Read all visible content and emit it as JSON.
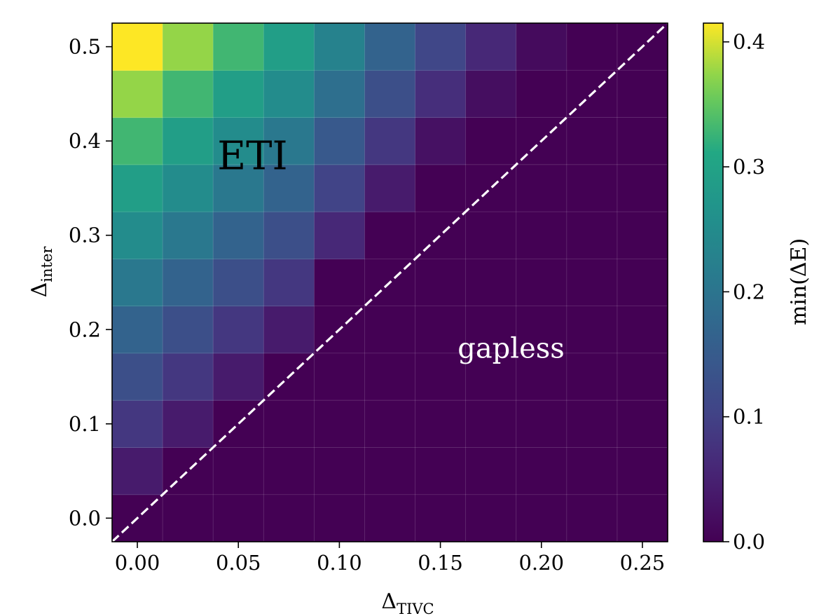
{
  "chart_data": {
    "type": "heatmap",
    "x": [
      0.0,
      0.025,
      0.05,
      0.075,
      0.1,
      0.125,
      0.15,
      0.175,
      0.2,
      0.225,
      0.25
    ],
    "y": [
      0.0,
      0.05,
      0.1,
      0.15,
      0.2,
      0.25,
      0.3,
      0.35,
      0.4,
      0.45,
      0.5
    ],
    "values": [
      [
        0.0,
        0.0,
        0.0,
        0.0,
        0.0,
        0.0,
        0.0,
        0.0,
        0.0,
        0.0,
        0.0
      ],
      [
        0.04,
        0.0,
        0.0,
        0.0,
        0.0,
        0.0,
        0.0,
        0.0,
        0.0,
        0.0,
        0.0
      ],
      [
        0.083,
        0.04,
        0.0,
        0.0,
        0.0,
        0.0,
        0.0,
        0.0,
        0.0,
        0.0,
        0.0
      ],
      [
        0.125,
        0.083,
        0.04,
        0.0,
        0.0,
        0.0,
        0.0,
        0.0,
        0.0,
        0.0,
        0.0
      ],
      [
        0.166,
        0.125,
        0.083,
        0.04,
        0.0,
        0.0,
        0.0,
        0.0,
        0.0,
        0.0,
        0.0
      ],
      [
        0.208,
        0.166,
        0.125,
        0.083,
        0.0,
        0.0,
        0.0,
        0.0,
        0.0,
        0.0,
        0.0
      ],
      [
        0.25,
        0.208,
        0.166,
        0.125,
        0.06,
        0.0,
        0.0,
        0.0,
        0.0,
        0.0,
        0.0
      ],
      [
        0.29,
        0.25,
        0.208,
        0.166,
        0.104,
        0.04,
        0.0,
        0.0,
        0.0,
        0.0,
        0.0
      ],
      [
        0.33,
        0.29,
        0.25,
        0.208,
        0.146,
        0.083,
        0.025,
        0.0,
        0.0,
        0.0,
        0.0
      ],
      [
        0.375,
        0.33,
        0.29,
        0.25,
        0.19,
        0.125,
        0.07,
        0.02,
        0.0,
        0.0,
        0.0
      ],
      [
        0.415,
        0.375,
        0.33,
        0.29,
        0.23,
        0.166,
        0.11,
        0.06,
        0.015,
        0.0,
        0.0
      ]
    ],
    "xlabel": "Δ",
    "xlabel_sub": "TIVC",
    "ylabel": "Δ",
    "ylabel_sub": "inter",
    "colorbar_label": "min(ΔE)",
    "colorbar_range": [
      0.0,
      0.415
    ],
    "colormap": "viridis",
    "xlim": [
      -0.0125,
      0.2625
    ],
    "ylim": [
      -0.025,
      0.525
    ],
    "xticks": [
      0.0,
      0.05,
      0.1,
      0.15,
      0.2,
      0.25
    ],
    "xtick_labels": [
      "0.00",
      "0.05",
      "0.10",
      "0.15",
      "0.20",
      "0.25"
    ],
    "yticks": [
      0.0,
      0.1,
      0.2,
      0.3,
      0.4,
      0.5
    ],
    "ytick_labels": [
      "0.0",
      "0.1",
      "0.2",
      "0.3",
      "0.4",
      "0.5"
    ],
    "cbar_ticks": [
      0.0,
      0.1,
      0.2,
      0.3,
      0.4
    ],
    "cbar_tick_labels": [
      "0.0",
      "0.1",
      "0.2",
      "0.3",
      "0.4"
    ],
    "boundary_line": {
      "slope": 2.0,
      "intercept": 0.0,
      "style": "dashed",
      "color": "#ffffff"
    },
    "annotations": [
      {
        "text": "ETI",
        "x": 0.057,
        "y": 0.37,
        "color": "#000000"
      },
      {
        "text": "gapless",
        "x": 0.185,
        "y": 0.17,
        "color": "#ffffff"
      }
    ]
  }
}
